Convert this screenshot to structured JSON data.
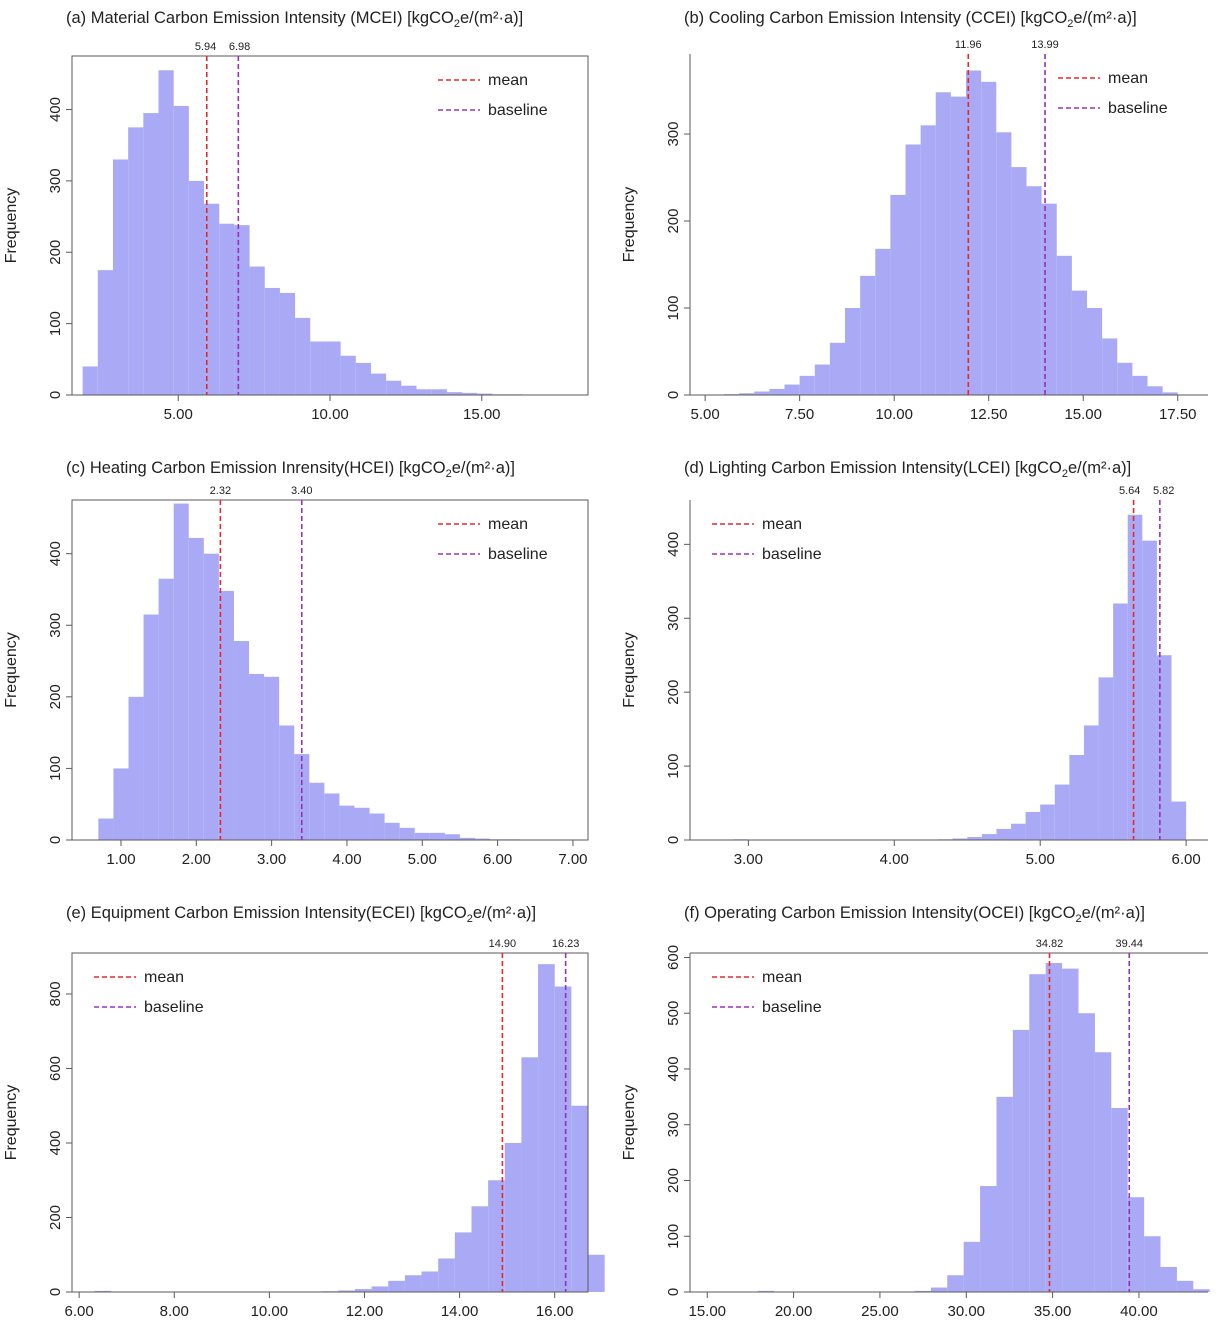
{
  "chart_data": [
    {
      "type": "bar",
      "panel": "a",
      "title": "(a) Material Carbon Emission Intensity (MCEI) [kgCO₂e/(m²·a)]",
      "xlabel": "",
      "ylabel": "Frequency",
      "xlim": [
        1.5,
        18.5
      ],
      "ylim": [
        0,
        475
      ],
      "bin_start": 1.85,
      "bin_width": 0.5,
      "values": [
        40,
        175,
        330,
        375,
        395,
        455,
        405,
        300,
        268,
        240,
        238,
        180,
        150,
        143,
        108,
        75,
        75,
        55,
        45,
        30,
        20,
        13,
        8,
        8,
        4,
        3,
        2,
        1,
        1,
        0,
        0,
        0
      ],
      "xticks": [
        5,
        10,
        15
      ],
      "xtick_labels": [
        "5.00",
        "10.00",
        "15.00"
      ],
      "yticks": [
        0,
        100,
        200,
        300,
        400
      ],
      "ytick_labels": [
        "0",
        "100",
        "200",
        "300",
        "400"
      ],
      "mean": 5.94,
      "mean_label": "5.94",
      "baseline": 6.98,
      "baseline_label": "6.98",
      "legend": [
        "mean",
        "baseline"
      ],
      "legend_position": "top-right",
      "border": "box"
    },
    {
      "type": "bar",
      "panel": "b",
      "title": "(b) Cooling Carbon Emission Intensity (CCEI) [kgCO₂e/(m²·a)]",
      "xlabel": "",
      "ylabel": "Frequency",
      "xlim": [
        4.6,
        18.3
      ],
      "ylim": [
        0,
        392
      ],
      "bin_start": 5.5,
      "bin_width": 0.4,
      "values": [
        1,
        2,
        4,
        7,
        12,
        22,
        35,
        60,
        100,
        137,
        168,
        230,
        288,
        310,
        348,
        343,
        373,
        360,
        302,
        262,
        240,
        220,
        160,
        120,
        100,
        65,
        37,
        22,
        10,
        3
      ],
      "xticks": [
        5,
        7.5,
        10,
        12.5,
        15,
        17.5
      ],
      "xtick_labels": [
        "5.00",
        "7.50",
        "10.00",
        "12.50",
        "15.00",
        "17.50"
      ],
      "yticks": [
        0,
        100,
        200,
        300
      ],
      "ytick_labels": [
        "0",
        "100",
        "200",
        "300"
      ],
      "mean": 11.96,
      "mean_label": "11.96",
      "baseline": 13.99,
      "baseline_label": "13.99",
      "legend": [
        "mean",
        "baseline"
      ],
      "legend_position": "top-right",
      "border": "left-bottom"
    },
    {
      "type": "bar",
      "panel": "c",
      "title": "(c) Heating Carbon Emission Inrensity(HCEI) [kgCO₂e/(m²·a)]",
      "xlabel": "",
      "ylabel": "Frequency",
      "xlim": [
        0.35,
        7.2
      ],
      "ylim": [
        0,
        475
      ],
      "bin_start": 0.7,
      "bin_width": 0.2,
      "values": [
        30,
        100,
        200,
        315,
        365,
        470,
        422,
        400,
        348,
        278,
        232,
        228,
        160,
        120,
        80,
        65,
        48,
        45,
        37,
        24,
        17,
        10,
        10,
        8,
        3,
        2,
        1,
        1,
        0,
        0
      ],
      "xticks": [
        1,
        2,
        3,
        4,
        5,
        6,
        7
      ],
      "xtick_labels": [
        "1.00",
        "2.00",
        "3.00",
        "4.00",
        "5.00",
        "6.00",
        "7.00"
      ],
      "yticks": [
        0,
        100,
        200,
        300,
        400
      ],
      "ytick_labels": [
        "0",
        "100",
        "200",
        "300",
        "400"
      ],
      "mean": 2.32,
      "mean_label": "2.32",
      "baseline": 3.4,
      "baseline_label": "3.40",
      "legend": [
        "mean",
        "baseline"
      ],
      "legend_position": "top-right",
      "border": "box"
    },
    {
      "type": "bar",
      "panel": "d",
      "title": "(d) Lighting Carbon Emission Intensity(LCEI) [kgCO₂e/(m²·a)]",
      "xlabel": "",
      "ylabel": "Frequency",
      "xlim": [
        2.6,
        6.15
      ],
      "ylim": [
        0,
        460
      ],
      "bin_start": 4.3,
      "bin_width": 0.1,
      "values": [
        1,
        2,
        4,
        8,
        15,
        22,
        38,
        48,
        75,
        115,
        155,
        220,
        320,
        440,
        405,
        250,
        52
      ],
      "extra_bins": [
        {
          "x": 2.95,
          "value": 1
        }
      ],
      "xticks": [
        3,
        4,
        5,
        6
      ],
      "xtick_labels": [
        "3.00",
        "4.00",
        "5.00",
        "6.00"
      ],
      "yticks": [
        0,
        100,
        200,
        300,
        400
      ],
      "ytick_labels": [
        "0",
        "100",
        "200",
        "300",
        "400"
      ],
      "mean": 5.64,
      "mean_label": "5.64",
      "baseline": 5.82,
      "baseline_label": "5.82",
      "legend": [
        "mean",
        "baseline"
      ],
      "legend_position": "top-left",
      "border": "left-bottom"
    },
    {
      "type": "bar",
      "panel": "e",
      "title": "(e) Equipment Carbon Emission Intensity(ECEI) [kgCO₂e/(m²·a)]",
      "xlabel": "",
      "ylabel": "Frequency",
      "xlim": [
        5.85,
        16.7
      ],
      "ylim": [
        0,
        910
      ],
      "bin_start": 11.1,
      "bin_width": 0.35,
      "values": [
        2,
        4,
        8,
        15,
        30,
        45,
        55,
        90,
        160,
        230,
        300,
        400,
        630,
        880,
        820,
        500,
        100
      ],
      "extra_bins": [
        {
          "x": 6.5,
          "value": 3
        }
      ],
      "xticks": [
        6,
        8,
        10,
        12,
        14,
        16
      ],
      "xtick_labels": [
        "6.00",
        "8.00",
        "10.00",
        "12.00",
        "14.00",
        "16.00"
      ],
      "yticks": [
        0,
        200,
        400,
        600,
        800
      ],
      "ytick_labels": [
        "0",
        "200",
        "400",
        "600",
        "800"
      ],
      "mean": 14.9,
      "mean_label": "14.90",
      "baseline": 16.23,
      "baseline_label": "16.23",
      "legend": [
        "mean",
        "baseline"
      ],
      "legend_position": "top-left",
      "border": "box"
    },
    {
      "type": "bar",
      "panel": "f",
      "title": "(f) Operating Carbon Emission Intensity(OCEI) [kgCO₂e/(m²·a)]",
      "xlabel": "",
      "ylabel": "Frequency",
      "xlim": [
        14.0,
        44.0
      ],
      "ylim": [
        0,
        608
      ],
      "bin_start": 27,
      "bin_width": 0.95,
      "values": [
        2,
        8,
        30,
        90,
        190,
        350,
        470,
        570,
        590,
        580,
        500,
        430,
        330,
        170,
        100,
        45,
        20,
        5
      ],
      "extra_bins": [
        {
          "x": 18.4,
          "value": 2
        }
      ],
      "xticks": [
        15,
        20,
        25,
        30,
        35,
        40
      ],
      "xtick_labels": [
        "15.00",
        "20.00",
        "25.00",
        "30.00",
        "35.00",
        "40.00"
      ],
      "yticks": [
        0,
        100,
        200,
        300,
        400,
        500,
        600
      ],
      "ytick_labels": [
        "0",
        "100",
        "200",
        "300",
        "400",
        "500",
        "600"
      ],
      "mean": 34.82,
      "mean_label": "34.82",
      "baseline": 39.44,
      "baseline_label": "39.44",
      "legend": [
        "mean",
        "baseline"
      ],
      "legend_position": "top-left",
      "border": "left-bottom-top"
    }
  ],
  "colors": {
    "bar": "#a9a9f5",
    "mean": "#e8282c",
    "baseline": "#9b30b8",
    "axis": "#5a5a5a",
    "text": "#222222"
  }
}
